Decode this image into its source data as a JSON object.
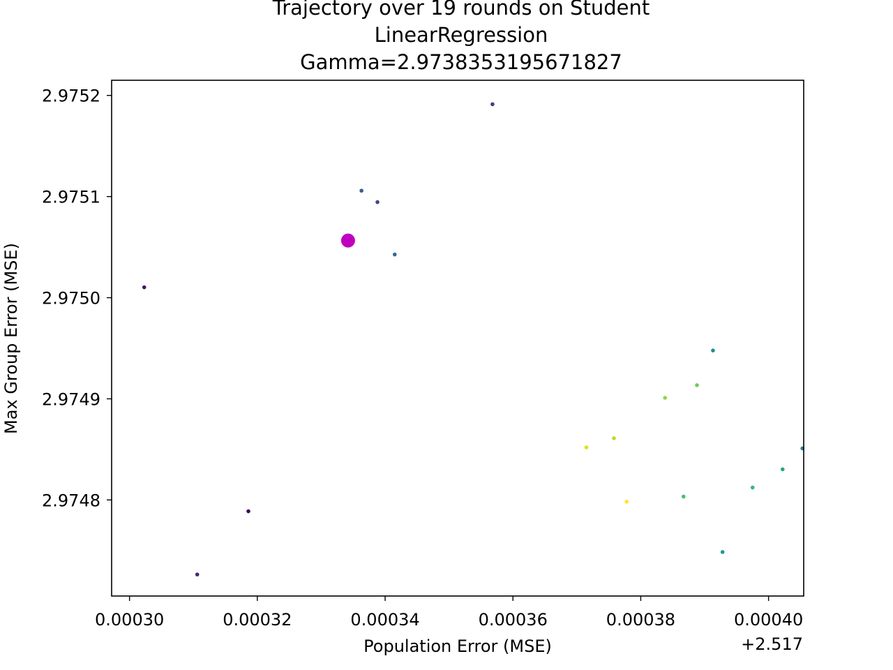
{
  "chart_data": {
    "type": "scatter",
    "title_lines": [
      "Trajectory over 19 rounds on Student",
      "LinearRegression",
      "Gamma=2.9738353195671827"
    ],
    "xlabel": "Population Error (MSE)",
    "ylabel": "Max Group Error (MSE)",
    "x_offset_label": "+2.517",
    "x_offset": 2.517,
    "xlim": [
      2.5172972,
      2.5174055
    ],
    "ylim": [
      2.974705,
      2.975215
    ],
    "xticks": [
      2.5173,
      2.51732,
      2.51734,
      2.51736,
      2.51738,
      2.5174
    ],
    "xtick_labels": [
      "0.00030",
      "0.00032",
      "0.00034",
      "0.00036",
      "0.00038",
      "0.00040"
    ],
    "yticks": [
      2.9748,
      2.9749,
      2.975,
      2.9751,
      2.9752
    ],
    "ytick_labels": [
      "2.9748",
      "2.9749",
      "2.9750",
      "2.9751",
      "2.9752"
    ],
    "grid": false,
    "colormap": "viridis",
    "highlight_color": "#c000c0",
    "highlight_point": {
      "x": 2.5173342,
      "y": 2.9750565
    },
    "points": [
      {
        "round": 1,
        "x": 2.5173186,
        "y": 2.9747888,
        "color": "#440154"
      },
      {
        "round": 2,
        "x": 2.5173023,
        "y": 2.9750103,
        "color": "#471365"
      },
      {
        "round": 3,
        "x": 2.5173106,
        "y": 2.9747263,
        "color": "#482475"
      },
      {
        "round": 4,
        "x": 2.5173568,
        "y": 2.9751913,
        "color": "#433e85"
      },
      {
        "round": 5,
        "x": 2.5173388,
        "y": 2.9750945,
        "color": "#3e4989"
      },
      {
        "round": 6,
        "x": 2.5173363,
        "y": 2.9751058,
        "color": "#355f8d"
      },
      {
        "round": 7,
        "x": 2.5173415,
        "y": 2.9750427,
        "color": "#2e6e8e"
      },
      {
        "round": 8,
        "x": 2.5174053,
        "y": 2.974851,
        "color": "#27808e"
      },
      {
        "round": 9,
        "x": 2.5173913,
        "y": 2.9749478,
        "color": "#218e8d"
      },
      {
        "round": 10,
        "x": 2.5173928,
        "y": 2.9747485,
        "color": "#1f9a8a"
      },
      {
        "round": 11,
        "x": 2.5174022,
        "y": 2.9748303,
        "color": "#22a884"
      },
      {
        "round": 12,
        "x": 2.5173975,
        "y": 2.9748123,
        "color": "#35b779"
      },
      {
        "round": 13,
        "x": 2.5173867,
        "y": 2.9748033,
        "color": "#44bf70"
      },
      {
        "round": 14,
        "x": 2.5173888,
        "y": 2.9749135,
        "color": "#6ccd5a"
      },
      {
        "round": 15,
        "x": 2.5173838,
        "y": 2.974901,
        "color": "#8ed645"
      },
      {
        "round": 16,
        "x": 2.5173758,
        "y": 2.974861,
        "color": "#b5de2b"
      },
      {
        "round": 17,
        "x": 2.5173715,
        "y": 2.974852,
        "color": "#d8e219"
      },
      {
        "round": 18,
        "x": 2.5173778,
        "y": 2.9747983,
        "color": "#fde725"
      }
    ]
  }
}
